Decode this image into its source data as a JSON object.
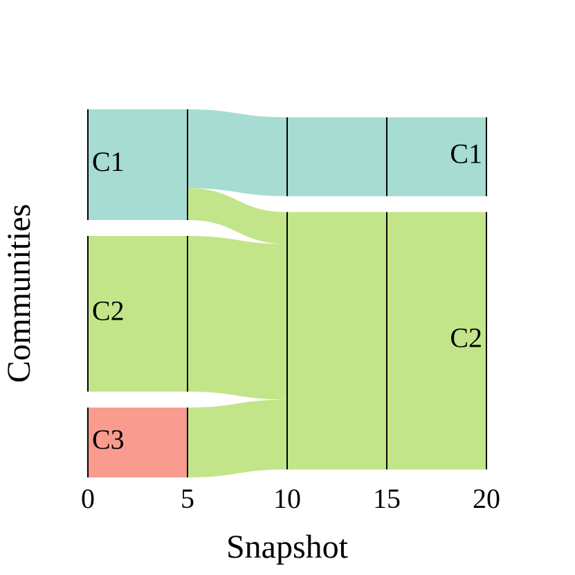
{
  "chart_data": {
    "type": "alluvial",
    "xlabel": "Snapshot",
    "ylabel": "Communities",
    "xlim": [
      0,
      20
    ],
    "xticks": [
      0,
      5,
      10,
      15,
      20
    ],
    "start": {
      "x": [
        0,
        5
      ],
      "series": [
        {
          "name": "C1",
          "color": "#a6dcd1",
          "value": 160
        },
        {
          "name": "C2",
          "color": "#c3e58a",
          "value": 225
        },
        {
          "name": "C3",
          "color": "#f99b8e",
          "value": 101
        }
      ]
    },
    "end": {
      "x": [
        10,
        20
      ],
      "series": [
        {
          "name": "C1",
          "color": "#a6dcd1",
          "value": 114
        },
        {
          "name": "C2",
          "color": "#c3e58a",
          "value": 372
        }
      ]
    },
    "flows": [
      [
        114,
        46
      ],
      [
        0,
        225
      ],
      [
        0,
        101
      ]
    ]
  }
}
